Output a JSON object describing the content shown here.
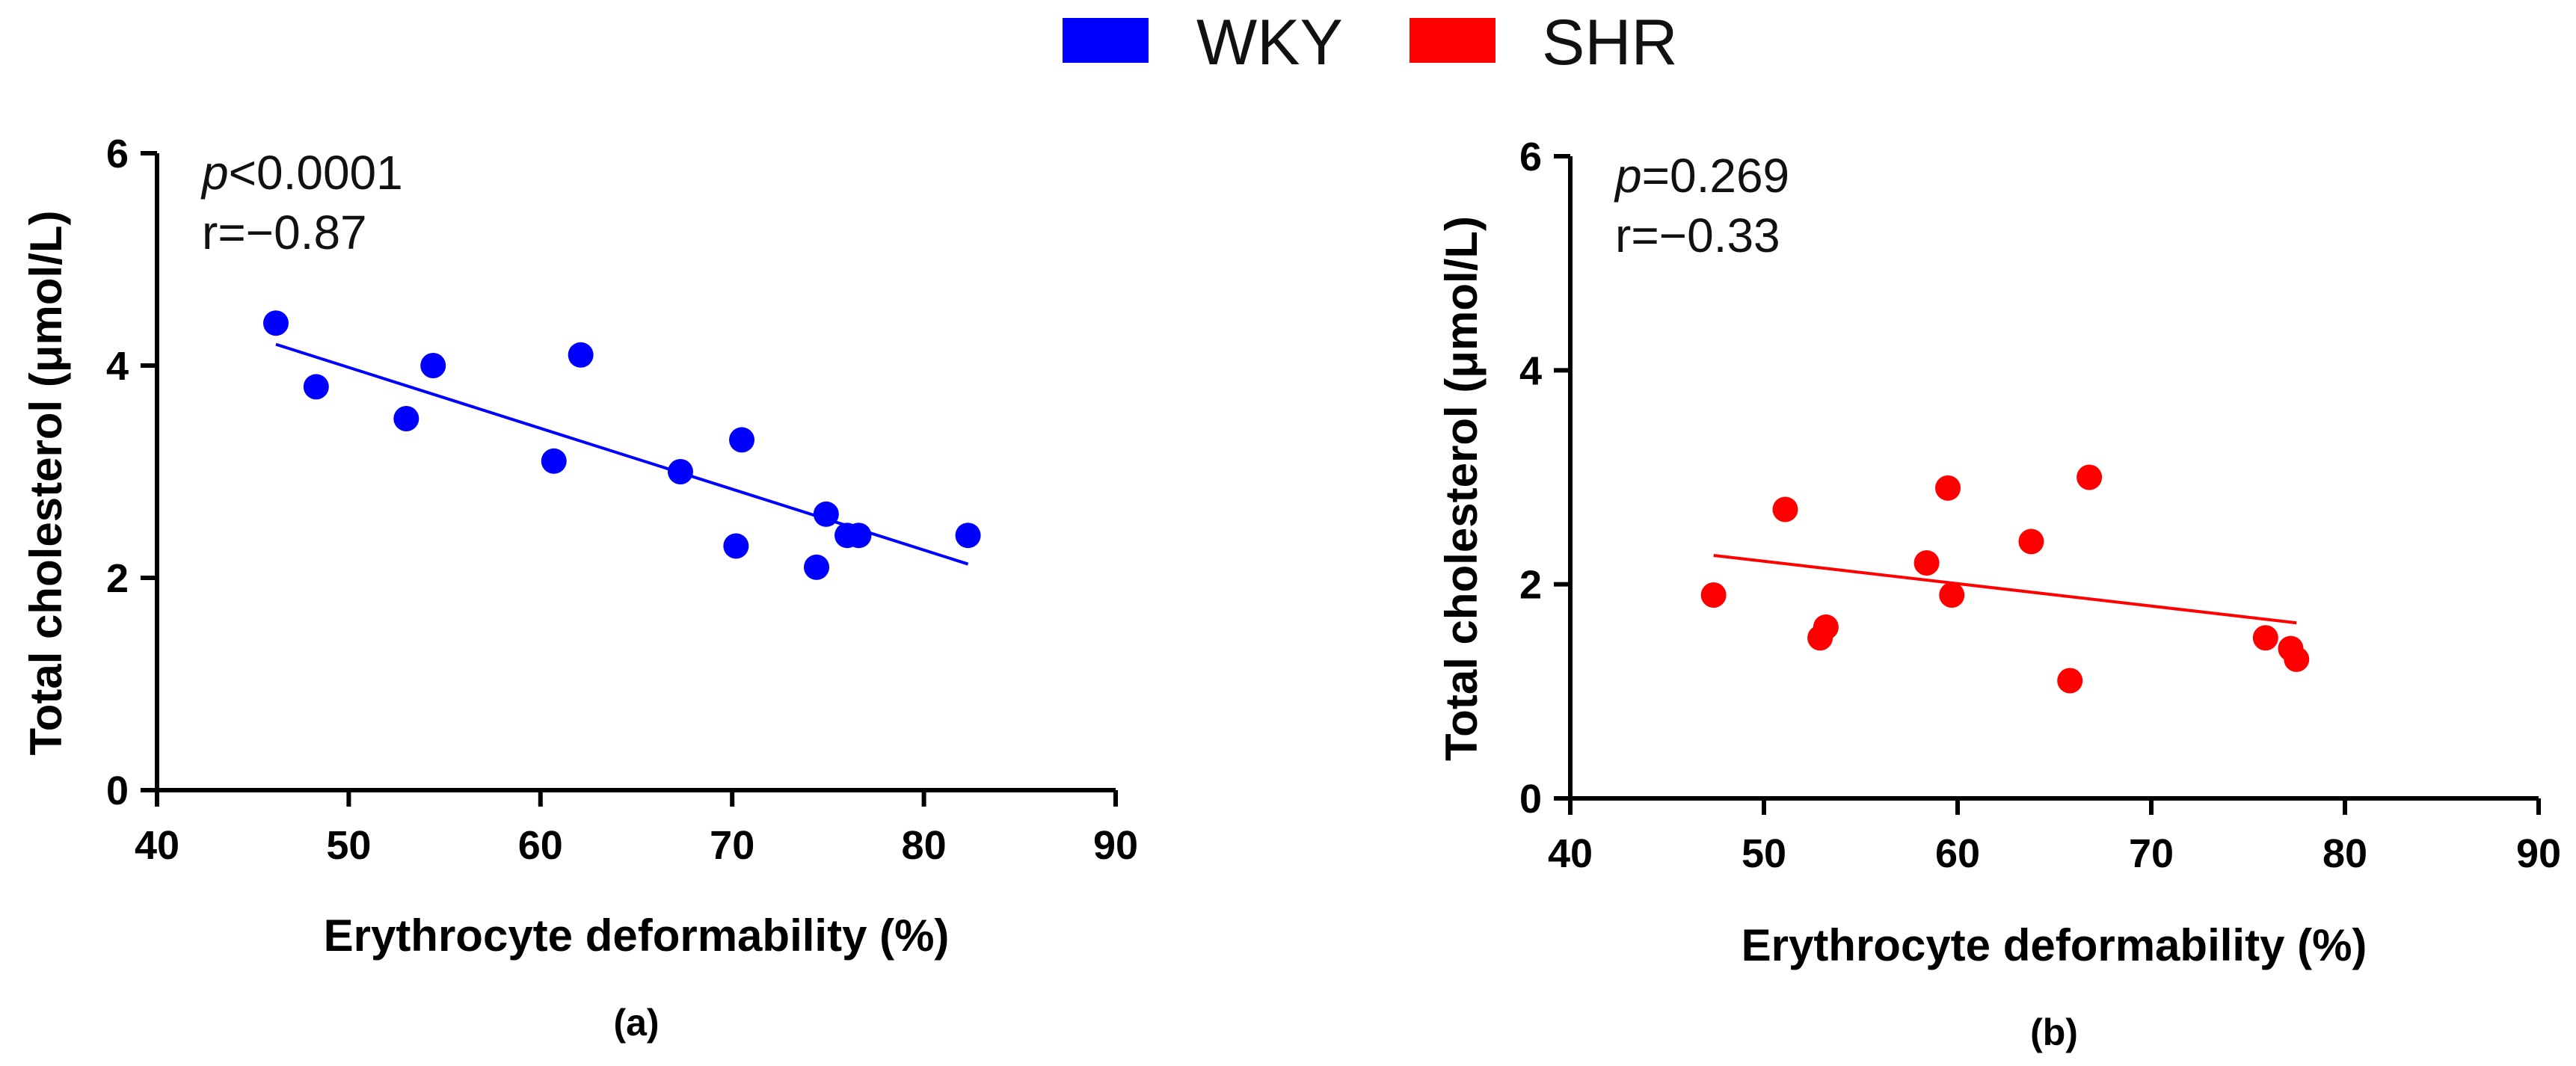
{
  "legend": [
    {
      "name": "WKY",
      "color": "#0000ff"
    },
    {
      "name": "SHR",
      "color": "#ff0000"
    }
  ],
  "chart_data": [
    {
      "type": "scatter",
      "panel_label": "(a)",
      "series_name": "WKY",
      "color": "#0000ff",
      "xlabel": "Erythrocyte deformability (%)",
      "ylabel": "Total cholesterol (μmol/L)",
      "xlim": [
        40,
        90
      ],
      "ylim": [
        0,
        6
      ],
      "xticks": [
        40,
        50,
        60,
        70,
        80,
        90
      ],
      "yticks": [
        0,
        2,
        4,
        6
      ],
      "annotation": {
        "p_symbol": "p",
        "p_value": "<0.0001",
        "r": "r=−0.87"
      },
      "points": [
        {
          "x": 46.2,
          "y": 4.4
        },
        {
          "x": 48.3,
          "y": 3.8
        },
        {
          "x": 53.0,
          "y": 3.5
        },
        {
          "x": 54.4,
          "y": 4.0
        },
        {
          "x": 60.7,
          "y": 3.1
        },
        {
          "x": 62.1,
          "y": 4.1
        },
        {
          "x": 67.3,
          "y": 3.0
        },
        {
          "x": 70.2,
          "y": 2.3
        },
        {
          "x": 70.5,
          "y": 3.3
        },
        {
          "x": 74.4,
          "y": 2.1
        },
        {
          "x": 74.9,
          "y": 2.6
        },
        {
          "x": 76.0,
          "y": 2.4
        },
        {
          "x": 76.6,
          "y": 2.4
        },
        {
          "x": 82.3,
          "y": 2.4
        }
      ],
      "fit_line": {
        "x": [
          46.2,
          82.3
        ],
        "y": [
          4.2,
          2.13
        ]
      }
    },
    {
      "type": "scatter",
      "panel_label": "(b)",
      "series_name": "SHR",
      "color": "#ff0000",
      "xlabel": "Erythrocyte deformability (%)",
      "ylabel": "Total cholesterol (μmol/L)",
      "xlim": [
        40,
        90
      ],
      "ylim": [
        0,
        6
      ],
      "xticks": [
        40,
        50,
        60,
        70,
        80,
        90
      ],
      "yticks": [
        0,
        2,
        4,
        6
      ],
      "annotation": {
        "p_symbol": "p",
        "p_value": "=0.269",
        "r": "r=−0.33"
      },
      "points": [
        {
          "x": 47.4,
          "y": 1.9
        },
        {
          "x": 51.1,
          "y": 2.7
        },
        {
          "x": 52.9,
          "y": 1.5
        },
        {
          "x": 53.2,
          "y": 1.6
        },
        {
          "x": 58.4,
          "y": 2.2
        },
        {
          "x": 59.5,
          "y": 2.9
        },
        {
          "x": 59.7,
          "y": 1.9
        },
        {
          "x": 63.8,
          "y": 2.4
        },
        {
          "x": 65.8,
          "y": 1.1
        },
        {
          "x": 66.8,
          "y": 3.0
        },
        {
          "x": 75.9,
          "y": 1.5
        },
        {
          "x": 77.2,
          "y": 1.4
        },
        {
          "x": 77.5,
          "y": 1.3
        }
      ],
      "fit_line": {
        "x": [
          47.4,
          77.5
        ],
        "y": [
          2.27,
          1.64
        ]
      }
    }
  ]
}
